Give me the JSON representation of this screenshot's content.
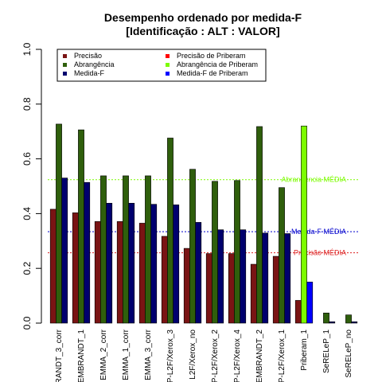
{
  "chart_data": {
    "type": "bar",
    "title": "Desempenho ordenado por medida-F",
    "subtitle": "[Identificação : ALT : VALOR]",
    "xlabel": "",
    "ylabel": "",
    "ylim": [
      0,
      1
    ],
    "yticks": [
      "0.0",
      "0.2",
      "0.4",
      "0.6",
      "0.8",
      "1.0"
    ],
    "grid": false,
    "legend_position": "top",
    "categories": [
      "RANDT_3_corr",
      "EMBRANDT_1",
      "EMMA_2_corr",
      "EMMA_1_corr",
      "EMMA_3_corr",
      "P-L2F/Xerox_3",
      "L2F/Xerox_no",
      "P-L2F/Xerox_2",
      "P-L2F/Xerox_4",
      "EMBRANDT_2",
      "P-L2F/Xerox_1",
      "Priberam_1",
      "SeRELeP_1",
      "SeRELeP_no"
    ],
    "series": [
      {
        "name": "Precisão",
        "color": "#7a1414",
        "values": [
          0.416,
          0.403,
          0.371,
          0.371,
          0.365,
          0.317,
          0.273,
          0.254,
          0.254,
          0.215,
          0.244,
          0.083,
          0.0,
          0.0
        ]
      },
      {
        "name": "Abrangência",
        "color": "#2f5f0c",
        "values": [
          0.727,
          0.706,
          0.538,
          0.538,
          0.538,
          0.676,
          0.562,
          0.518,
          0.521,
          0.718,
          0.495,
          0.0,
          0.037,
          0.03
        ]
      },
      {
        "name": "Medida-F",
        "color": "#00006e",
        "values": [
          0.53,
          0.514,
          0.438,
          0.438,
          0.434,
          0.432,
          0.368,
          0.341,
          0.341,
          0.329,
          0.327,
          0.0,
          0.005,
          0.005
        ]
      },
      {
        "name": "Precisão de Priberam",
        "color": "#ff0000",
        "values": [
          0,
          0,
          0,
          0,
          0,
          0,
          0,
          0,
          0,
          0,
          0,
          0,
          0,
          0
        ]
      },
      {
        "name": "Abrangência de Priberam",
        "color": "#7cfc00",
        "values": [
          0,
          0,
          0,
          0,
          0,
          0,
          0,
          0,
          0,
          0,
          0,
          0.72,
          0,
          0
        ]
      },
      {
        "name": "Medida-F de Priberam",
        "color": "#0000ff",
        "values": [
          0,
          0,
          0,
          0,
          0,
          0,
          0,
          0,
          0,
          0,
          0,
          0.15,
          0,
          0
        ]
      }
    ],
    "reference_lines": [
      {
        "label": "Abrangência MÉDIA",
        "value": 0.524,
        "color": "#7cfc00"
      },
      {
        "label": "Medida-F MÉDIA",
        "value": 0.334,
        "color": "#0000cd"
      },
      {
        "label": "Precisão MÉDIA",
        "value": 0.257,
        "color": "#dd2222"
      }
    ]
  }
}
